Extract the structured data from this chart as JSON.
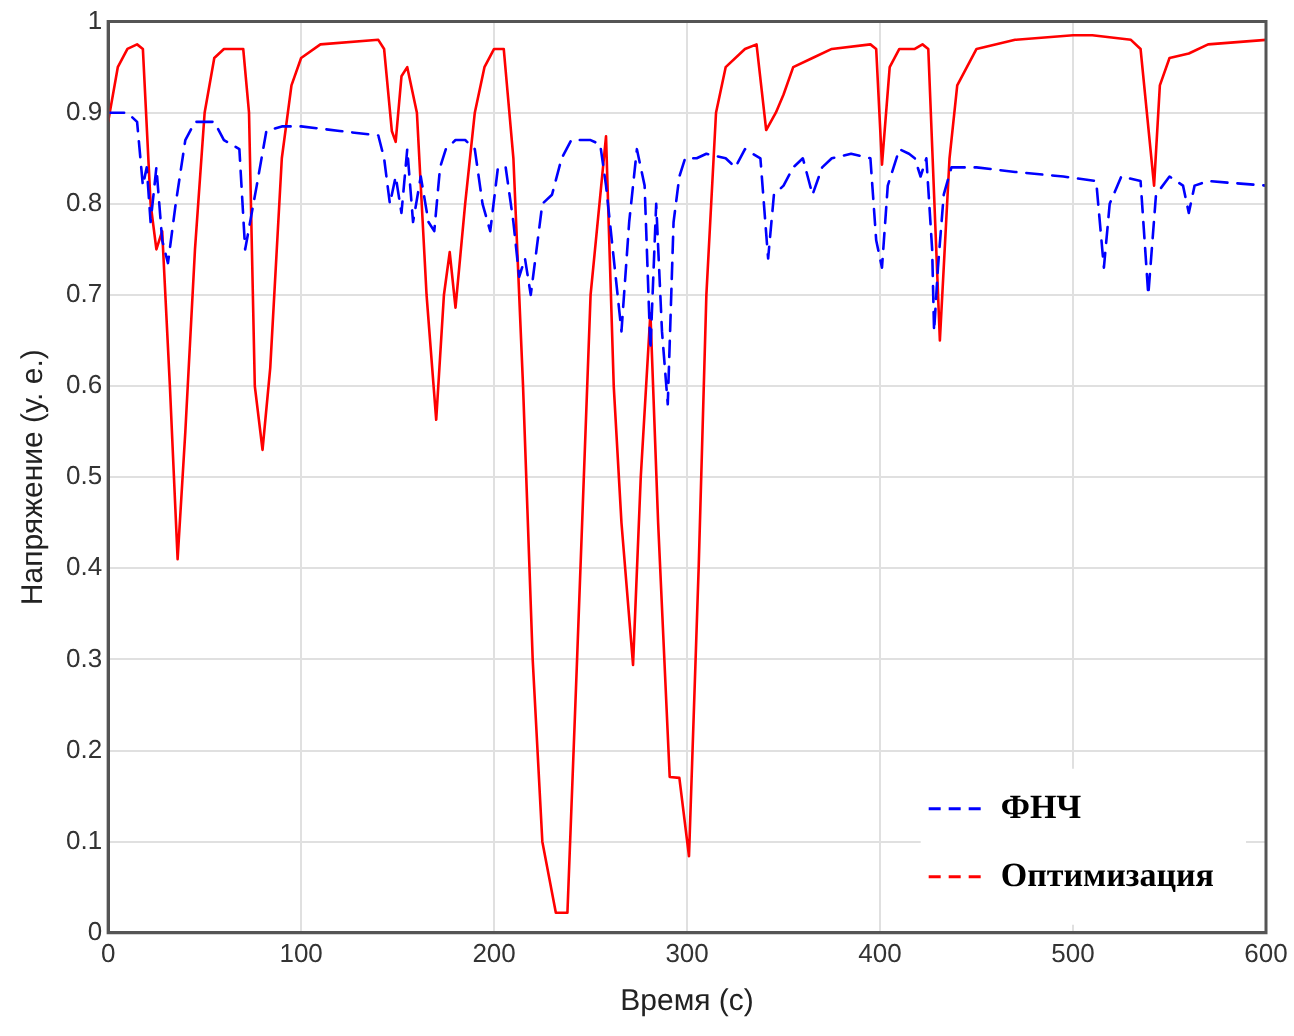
{
  "chart_data": {
    "type": "line",
    "xlabel": "Время (с)",
    "ylabel": "Напряжение (у. е.)",
    "xlim": [
      0,
      600
    ],
    "xticks": [
      0,
      100,
      200,
      300,
      400,
      500,
      600
    ],
    "ylim": [
      0,
      1
    ],
    "yticks": [
      0,
      0.1,
      0.2,
      0.3,
      0.4,
      0.5,
      0.6,
      0.7,
      0.8,
      0.9,
      1
    ],
    "grid": true,
    "legend": "bottom right",
    "marker": "none",
    "series": [
      {
        "name": "ФНЧ",
        "color": "#0000ff",
        "line_style": "dashed",
        "x": [
          0,
          10,
          15,
          18,
          20,
          22,
          25,
          28,
          31,
          35,
          40,
          45,
          55,
          60,
          68,
          71,
          77,
          82,
          90,
          100,
          120,
          140,
          143,
          146,
          149,
          152,
          155,
          158,
          162,
          166,
          169,
          172,
          175,
          180,
          185,
          190,
          194,
          198,
          202,
          206,
          210,
          213,
          216,
          219,
          222,
          225,
          230,
          235,
          240,
          250,
          255,
          258,
          263,
          266,
          270,
          274,
          278,
          281,
          284,
          287,
          290,
          293,
          296,
          299,
          305,
          310,
          320,
          325,
          330,
          338,
          342,
          345,
          350,
          355,
          360,
          365,
          370,
          375,
          385,
          395,
          398,
          401,
          404,
          410,
          415,
          418,
          421,
          424,
          427,
          428,
          430,
          433,
          437,
          450,
          470,
          495,
          512,
          516,
          519,
          525,
          535,
          539,
          543,
          550,
          557,
          560,
          563,
          570,
          600
        ],
        "values": [
          0.9,
          0.9,
          0.89,
          0.82,
          0.84,
          0.78,
          0.84,
          0.76,
          0.735,
          0.8,
          0.87,
          0.89,
          0.89,
          0.87,
          0.86,
          0.75,
          0.82,
          0.88,
          0.885,
          0.885,
          0.88,
          0.875,
          0.85,
          0.8,
          0.83,
          0.79,
          0.86,
          0.78,
          0.83,
          0.78,
          0.77,
          0.84,
          0.86,
          0.87,
          0.87,
          0.86,
          0.8,
          0.77,
          0.84,
          0.84,
          0.78,
          0.72,
          0.74,
          0.7,
          0.75,
          0.8,
          0.81,
          0.85,
          0.87,
          0.87,
          0.865,
          0.82,
          0.72,
          0.66,
          0.78,
          0.86,
          0.82,
          0.64,
          0.8,
          0.66,
          0.58,
          0.78,
          0.83,
          0.85,
          0.85,
          0.855,
          0.85,
          0.84,
          0.86,
          0.85,
          0.74,
          0.81,
          0.82,
          0.84,
          0.85,
          0.81,
          0.84,
          0.85,
          0.855,
          0.85,
          0.76,
          0.73,
          0.82,
          0.86,
          0.855,
          0.85,
          0.83,
          0.85,
          0.75,
          0.66,
          0.73,
          0.81,
          0.84,
          0.84,
          0.835,
          0.83,
          0.825,
          0.73,
          0.8,
          0.83,
          0.825,
          0.7,
          0.81,
          0.83,
          0.82,
          0.79,
          0.82,
          0.825,
          0.82
        ]
      },
      {
        "name": "Оптимизация",
        "color": "#ff0000",
        "line_style": "solid",
        "x": [
          0,
          5,
          10,
          15,
          18,
          22,
          25,
          28,
          32,
          36,
          40,
          45,
          50,
          55,
          60,
          70,
          73,
          76,
          80,
          84,
          90,
          95,
          100,
          110,
          140,
          143,
          147,
          149,
          152,
          155,
          160,
          165,
          170,
          174,
          177,
          180,
          185,
          190,
          195,
          200,
          205,
          210,
          215,
          220,
          225,
          232,
          238,
          243,
          250,
          258,
          262,
          266,
          272,
          276,
          281,
          285,
          291,
          296,
          301,
          306,
          310,
          315,
          320,
          330,
          336,
          341,
          346,
          350,
          355,
          365,
          375,
          395,
          398,
          401,
          405,
          410,
          418,
          422,
          425,
          431,
          436,
          440,
          450,
          470,
          500,
          510,
          530,
          535,
          542,
          545,
          550,
          560,
          570,
          600
        ],
        "values": [
          0.89,
          0.95,
          0.97,
          0.975,
          0.97,
          0.8,
          0.75,
          0.77,
          0.6,
          0.41,
          0.55,
          0.75,
          0.9,
          0.96,
          0.97,
          0.97,
          0.9,
          0.6,
          0.53,
          0.62,
          0.85,
          0.93,
          0.96,
          0.975,
          0.98,
          0.97,
          0.88,
          0.868,
          0.94,
          0.95,
          0.9,
          0.7,
          0.563,
          0.7,
          0.747,
          0.686,
          0.8,
          0.9,
          0.95,
          0.97,
          0.97,
          0.85,
          0.6,
          0.3,
          0.1,
          0.022,
          0.022,
          0.3,
          0.7,
          0.874,
          0.6,
          0.45,
          0.294,
          0.5,
          0.68,
          0.45,
          0.171,
          0.17,
          0.084,
          0.4,
          0.7,
          0.9,
          0.95,
          0.97,
          0.975,
          0.881,
          0.9,
          0.92,
          0.95,
          0.96,
          0.97,
          0.975,
          0.97,
          0.843,
          0.95,
          0.97,
          0.97,
          0.975,
          0.97,
          0.65,
          0.85,
          0.93,
          0.97,
          0.98,
          0.985,
          0.985,
          0.98,
          0.97,
          0.82,
          0.93,
          0.96,
          0.965,
          0.975,
          0.98
        ]
      }
    ]
  }
}
